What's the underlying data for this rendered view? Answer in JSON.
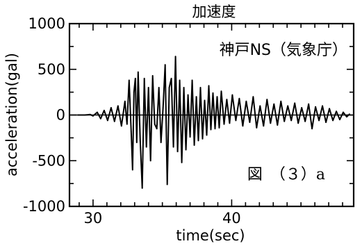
{
  "chart_data": {
    "type": "line",
    "title": "加速度",
    "xlabel": "time(sec)",
    "ylabel": "acceleration(gal)",
    "xlim": [
      28.3,
      48.8
    ],
    "ylim": [
      -1000,
      1000
    ],
    "x_ticks": [
      30,
      40
    ],
    "x_tick_labels": [
      "30",
      "40"
    ],
    "y_ticks": [
      1000,
      500,
      0,
      -500,
      -1000
    ],
    "y_tick_labels": [
      "1000",
      "500",
      "0",
      "-500",
      "-1000"
    ],
    "grid": false,
    "annotations": [
      "神戸NS（気象庁）",
      "図　（３）a"
    ],
    "series": [
      {
        "color": "#000000",
        "x": [
          28.9,
          29.4,
          29.8,
          30.0,
          30.3,
          30.55,
          30.8,
          31.05,
          31.3,
          31.55,
          31.8,
          32.05,
          32.3,
          32.45,
          32.6,
          32.75,
          32.85,
          32.95,
          33.05,
          33.15,
          33.25,
          33.4,
          33.55,
          33.7,
          33.85,
          34.0,
          34.15,
          34.3,
          34.45,
          34.6,
          34.75,
          34.9,
          35.05,
          35.2,
          35.35,
          35.5,
          35.65,
          35.8,
          35.95,
          36.1,
          36.25,
          36.4,
          36.55,
          36.7,
          36.85,
          37.0,
          37.15,
          37.3,
          37.45,
          37.6,
          37.75,
          37.9,
          38.05,
          38.2,
          38.35,
          38.5,
          38.65,
          38.8,
          38.95,
          39.1,
          39.25,
          39.45,
          39.65,
          39.85,
          40.05,
          40.3,
          40.55,
          40.8,
          41.05,
          41.3,
          41.55,
          41.8,
          42.05,
          42.3,
          42.55,
          42.8,
          43.05,
          43.3,
          43.55,
          43.8,
          44.05,
          44.3,
          44.55,
          44.8,
          45.05,
          45.3,
          45.55,
          45.8,
          46.05,
          46.3,
          46.55,
          46.8,
          47.05,
          47.3,
          47.55,
          47.8,
          48.05,
          48.3,
          48.5
        ],
        "y": [
          0,
          0,
          5,
          -10,
          30,
          -40,
          50,
          -60,
          80,
          -70,
          100,
          -120,
          150,
          -100,
          380,
          -180,
          -600,
          250,
          400,
          -300,
          470,
          -280,
          -800,
          400,
          -350,
          300,
          -500,
          430,
          -100,
          -150,
          300,
          -300,
          80,
          550,
          -760,
          300,
          400,
          -350,
          640,
          -400,
          380,
          -520,
          300,
          -380,
          220,
          -240,
          380,
          -330,
          200,
          -280,
          300,
          -260,
          160,
          -220,
          320,
          -160,
          240,
          -150,
          200,
          -140,
          260,
          -100,
          170,
          -90,
          220,
          -60,
          180,
          -120,
          150,
          -80,
          200,
          -140,
          100,
          -120,
          170,
          -90,
          120,
          -110,
          150,
          -70,
          100,
          -60,
          130,
          -90,
          80,
          -70,
          120,
          -150,
          90,
          -60,
          100,
          -80,
          70,
          -60,
          40,
          -50,
          30,
          -20,
          10
        ]
      }
    ]
  }
}
